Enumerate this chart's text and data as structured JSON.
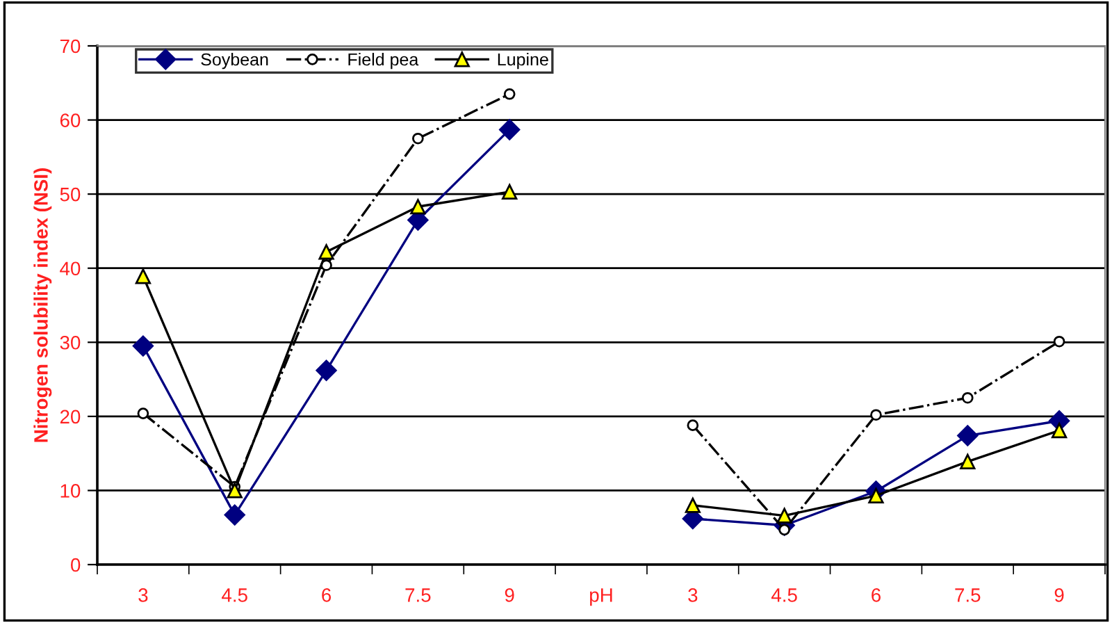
{
  "chart_data": {
    "type": "line",
    "ylabel": "Nitrogen solubility index (NSI)",
    "categories": [
      "3",
      "4.5",
      "6",
      "7.5",
      "9",
      "pH",
      "3",
      "4.5",
      "6",
      "7.5",
      "9"
    ],
    "series": [
      {
        "name": "Soybean",
        "color": "#000080",
        "marker": "diamond",
        "line_style": "solid",
        "values": [
          29.5,
          6.7,
          26.2,
          46.5,
          58.7,
          null,
          6.2,
          5.3,
          9.9,
          17.4,
          19.4
        ]
      },
      {
        "name": "Field pea",
        "color": "#ffffff",
        "marker": "circle",
        "line_style": "dashdot",
        "values": [
          20.4,
          10.5,
          40.4,
          57.5,
          63.5,
          null,
          18.8,
          4.7,
          20.2,
          22.5,
          30.1
        ]
      },
      {
        "name": "Lupine",
        "color": "#ffff00",
        "marker": "triangle",
        "line_style": "solid",
        "values": [
          38.9,
          10.0,
          42.2,
          48.3,
          50.3,
          null,
          8.0,
          6.6,
          9.3,
          13.9,
          18.1
        ]
      }
    ],
    "ylim": [
      0,
      70
    ],
    "yticks": [
      0,
      10,
      20,
      30,
      40,
      50,
      60,
      70
    ],
    "grid": "y",
    "legend": "top left"
  }
}
